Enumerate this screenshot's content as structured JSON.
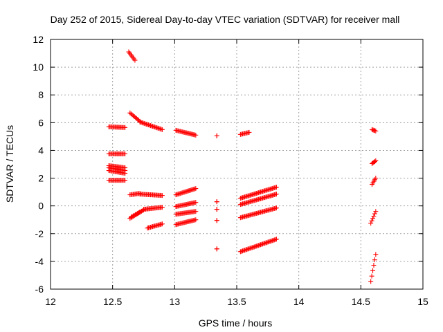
{
  "chart_data": {
    "type": "scatter",
    "title": "Day 252 of 2015, Sidereal Day-to-day VTEC variation (SDTVAR) for receiver mall",
    "xlabel": "GPS time / hours",
    "ylabel": "SDTVAR / TECUs",
    "xlim": [
      12,
      15
    ],
    "ylim": [
      -6,
      12
    ],
    "xticks": [
      12,
      12.5,
      13,
      13.5,
      14,
      14.5,
      15
    ],
    "xtick_labels": [
      "12",
      "12.5",
      "13",
      "13.5",
      "14",
      "14.5",
      "15"
    ],
    "yticks": [
      -6,
      -4,
      -2,
      0,
      2,
      4,
      6,
      8,
      10,
      12
    ],
    "ytick_labels": [
      "-6",
      "-4",
      "-2",
      "0",
      "2",
      "4",
      "6",
      "8",
      "10",
      "12"
    ],
    "grid": true,
    "marker": "+",
    "color": "#ff0000",
    "segments": [
      {
        "x": [
          12.47,
          12.6
        ],
        "y": [
          5.7,
          5.65
        ]
      },
      {
        "x": [
          12.47,
          12.6
        ],
        "y": [
          3.75,
          3.75
        ]
      },
      {
        "x": [
          12.47,
          12.6
        ],
        "y": [
          2.9,
          2.75
        ]
      },
      {
        "x": [
          12.47,
          12.6
        ],
        "y": [
          2.75,
          2.55
        ]
      },
      {
        "x": [
          12.47,
          12.6
        ],
        "y": [
          2.55,
          2.35
        ]
      },
      {
        "x": [
          12.47,
          12.6
        ],
        "y": [
          1.85,
          1.85
        ]
      },
      {
        "x": [
          12.63,
          12.68
        ],
        "y": [
          11.1,
          10.5
        ]
      },
      {
        "x": [
          12.64,
          12.72
        ],
        "y": [
          6.7,
          6.1
        ]
      },
      {
        "x": [
          12.72,
          12.9
        ],
        "y": [
          6.05,
          5.5
        ]
      },
      {
        "x": [
          12.64,
          12.72
        ],
        "y": [
          0.8,
          0.9
        ]
      },
      {
        "x": [
          12.72,
          12.9
        ],
        "y": [
          0.85,
          0.75
        ]
      },
      {
        "x": [
          12.64,
          12.72
        ],
        "y": [
          -0.9,
          -0.45
        ]
      },
      {
        "x": [
          12.65,
          12.75
        ],
        "y": [
          -0.8,
          -0.3
        ]
      },
      {
        "x": [
          12.75,
          12.9
        ],
        "y": [
          -0.25,
          -0.1
        ]
      },
      {
        "x": [
          12.78,
          12.9
        ],
        "y": [
          -1.6,
          -1.3
        ]
      },
      {
        "x": [
          13.01,
          13.17
        ],
        "y": [
          5.45,
          5.1
        ]
      },
      {
        "x": [
          13.01,
          13.17
        ],
        "y": [
          0.8,
          1.25
        ]
      },
      {
        "x": [
          13.01,
          13.17
        ],
        "y": [
          -0.05,
          0.25
        ]
      },
      {
        "x": [
          13.01,
          13.17
        ],
        "y": [
          -0.6,
          -0.4
        ]
      },
      {
        "x": [
          13.01,
          13.17
        ],
        "y": [
          -1.35,
          -1.0
        ]
      },
      {
        "x": [
          13.34,
          13.34
        ],
        "y": [
          5.05,
          5.05
        ]
      },
      {
        "x": [
          13.34,
          13.34
        ],
        "y": [
          0.3,
          0.3
        ]
      },
      {
        "x": [
          13.34,
          13.34
        ],
        "y": [
          -0.25,
          -0.25
        ]
      },
      {
        "x": [
          13.34,
          13.34
        ],
        "y": [
          -1.05,
          -1.05
        ]
      },
      {
        "x": [
          13.34,
          13.34
        ],
        "y": [
          -3.1,
          -3.1
        ]
      },
      {
        "x": [
          13.53,
          13.6
        ],
        "y": [
          5.15,
          5.3
        ]
      },
      {
        "x": [
          13.53,
          13.82
        ],
        "y": [
          0.55,
          1.35
        ]
      },
      {
        "x": [
          13.53,
          13.82
        ],
        "y": [
          0.1,
          0.85
        ]
      },
      {
        "x": [
          13.53,
          13.82
        ],
        "y": [
          -0.85,
          -0.15
        ]
      },
      {
        "x": [
          13.53,
          13.82
        ],
        "y": [
          -3.3,
          -2.4
        ]
      },
      {
        "x": [
          14.59,
          14.62
        ],
        "y": [
          5.5,
          5.4
        ]
      },
      {
        "x": [
          14.59,
          14.62
        ],
        "y": [
          3.05,
          3.25
        ]
      },
      {
        "x": [
          14.59,
          14.62
        ],
        "y": [
          1.55,
          2.0
        ]
      },
      {
        "x": [
          14.58,
          14.62
        ],
        "y": [
          -1.25,
          -0.4
        ]
      },
      {
        "x": [
          14.58,
          14.62
        ],
        "y": [
          -5.45,
          -3.5
        ]
      }
    ]
  }
}
